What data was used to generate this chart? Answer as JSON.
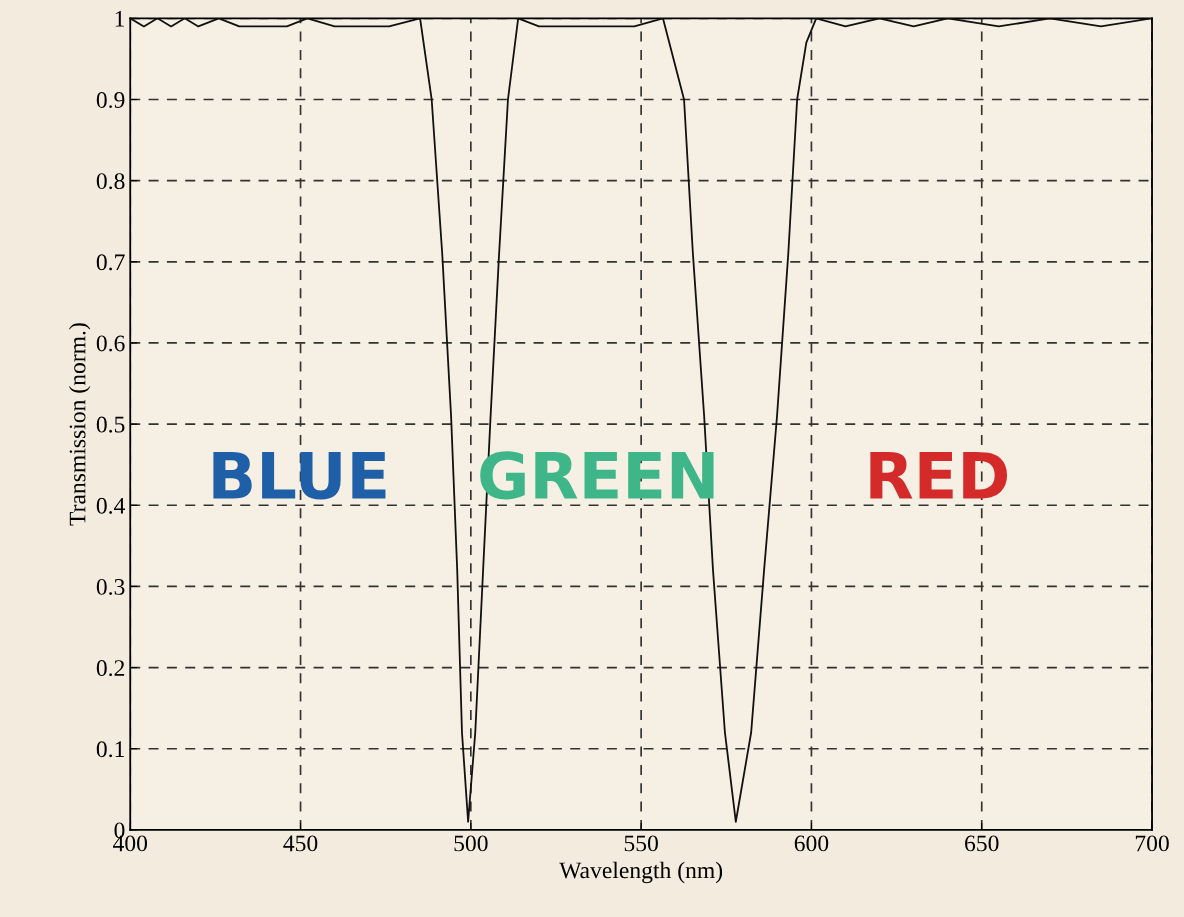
{
  "chart_data": {
    "type": "line",
    "xlabel": "Wavelength (nm)",
    "ylabel": "Transmission (norm.)",
    "xlim": [
      400,
      700
    ],
    "xticks": [
      400,
      450,
      500,
      550,
      600,
      650,
      700
    ],
    "ylim": [
      0,
      1
    ],
    "yticks": [
      0,
      0.1,
      0.2,
      0.3,
      0.4,
      0.5,
      0.6,
      0.7,
      0.8,
      0.9,
      1
    ],
    "grid": true,
    "marker": "none",
    "line_style": "solid",
    "series": [
      {
        "color": "#111111",
        "x": [
          400,
          404,
          408,
          412,
          416,
          420,
          426,
          432,
          446,
          452,
          460,
          468,
          476,
          485.1,
          488.5,
          491.6,
          494.2,
          496.0,
          497.4,
          499.2,
          501.3,
          503.6,
          505.8,
          508.3,
          510.9,
          513.9,
          520,
          530,
          540,
          548,
          556.4,
          562.6,
          565.2,
          568.5,
          571.1,
          574.6,
          577.8,
          582.3,
          586.1,
          589.9,
          593.2,
          595.8,
          598.5,
          601.4,
          610,
          620,
          630,
          640,
          655,
          670,
          685,
          700
        ],
        "values": [
          1,
          0.99,
          1,
          0.99,
          1,
          0.99,
          1,
          0.99,
          0.99,
          1,
          0.99,
          0.99,
          0.99,
          1,
          0.9,
          0.71,
          0.51,
          0.32,
          0.12,
          0.01,
          0.12,
          0.32,
          0.51,
          0.71,
          0.9,
          1,
          0.99,
          0.99,
          0.99,
          0.99,
          1,
          0.9,
          0.71,
          0.51,
          0.32,
          0.12,
          0.01,
          0.12,
          0.32,
          0.51,
          0.71,
          0.9,
          0.97,
          1,
          0.99,
          1,
          0.99,
          1,
          0.99,
          1,
          0.99,
          1
        ]
      }
    ],
    "annotations": [
      "BLUE",
      "GREEN",
      "RED"
    ]
  }
}
